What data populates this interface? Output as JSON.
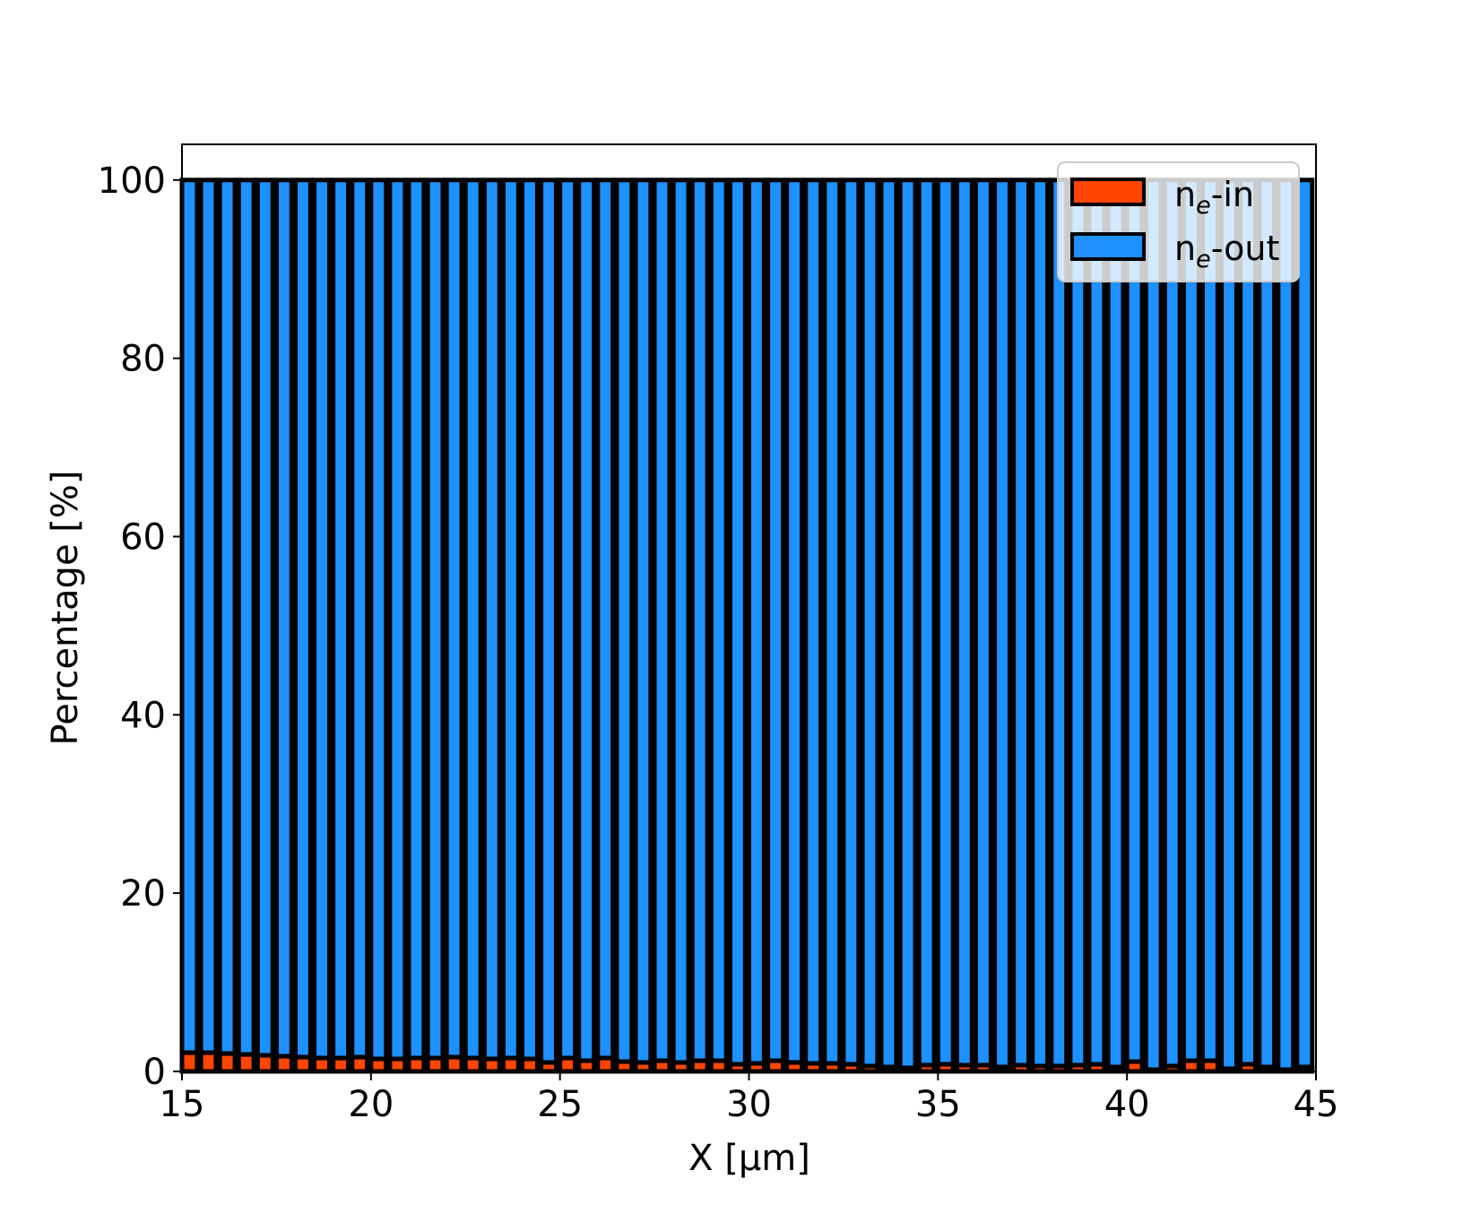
{
  "chart_data": {
    "type": "bar",
    "stacked": true,
    "xlabel": "X  [μm]",
    "ylabel": "Percentage  [%]",
    "xlim": [
      15,
      45
    ],
    "ylim": [
      0,
      104
    ],
    "xticks": [
      "15",
      "20",
      "25",
      "30",
      "35",
      "40",
      "45"
    ],
    "yticks": [
      "0",
      "20",
      "40",
      "60",
      "80",
      "100"
    ],
    "bar_width": 0.4,
    "legend_placement": "top-right",
    "x": [
      15.0,
      15.5,
      16.0,
      16.5,
      17.0,
      17.5,
      18.0,
      18.5,
      19.0,
      19.5,
      20.0,
      20.5,
      21.0,
      21.5,
      22.0,
      22.5,
      23.0,
      23.5,
      24.0,
      24.5,
      25.0,
      25.5,
      26.0,
      26.5,
      27.0,
      27.5,
      28.0,
      28.5,
      29.0,
      29.5,
      30.0,
      30.5,
      31.0,
      31.5,
      32.0,
      32.5,
      33.0,
      33.5,
      34.0,
      34.5,
      35.0,
      35.5,
      36.0,
      36.5,
      37.0,
      37.5,
      38.0,
      38.5,
      39.0,
      39.5,
      40.0,
      40.5,
      41.0,
      41.5,
      42.0,
      42.5,
      43.0,
      43.5,
      44.0,
      44.5
    ],
    "series": [
      {
        "name": "n_e-in",
        "label_base": "n",
        "label_sub": "e",
        "label_suffix": "-in",
        "color": "#FF4500",
        "values": [
          2.1,
          2.1,
          2.0,
          1.9,
          1.8,
          1.7,
          1.6,
          1.5,
          1.5,
          1.6,
          1.4,
          1.4,
          1.5,
          1.5,
          1.6,
          1.5,
          1.4,
          1.5,
          1.4,
          1.0,
          1.5,
          1.2,
          1.5,
          1.1,
          1.0,
          1.2,
          1.0,
          1.2,
          1.2,
          0.8,
          0.9,
          1.2,
          1.0,
          0.9,
          0.9,
          0.8,
          0.6,
          0.5,
          0.4,
          0.7,
          0.8,
          0.7,
          0.7,
          0.5,
          0.7,
          0.6,
          0.6,
          0.7,
          0.8,
          0.5,
          1.1,
          0.2,
          0.6,
          1.2,
          1.2,
          0.3,
          0.8,
          0.5,
          0.2,
          0.5
        ]
      },
      {
        "name": "n_e-out",
        "label_base": "n",
        "label_sub": "e",
        "label_suffix": "-out",
        "color": "#1E90FF",
        "values": "100 minus n_e-in"
      }
    ]
  }
}
